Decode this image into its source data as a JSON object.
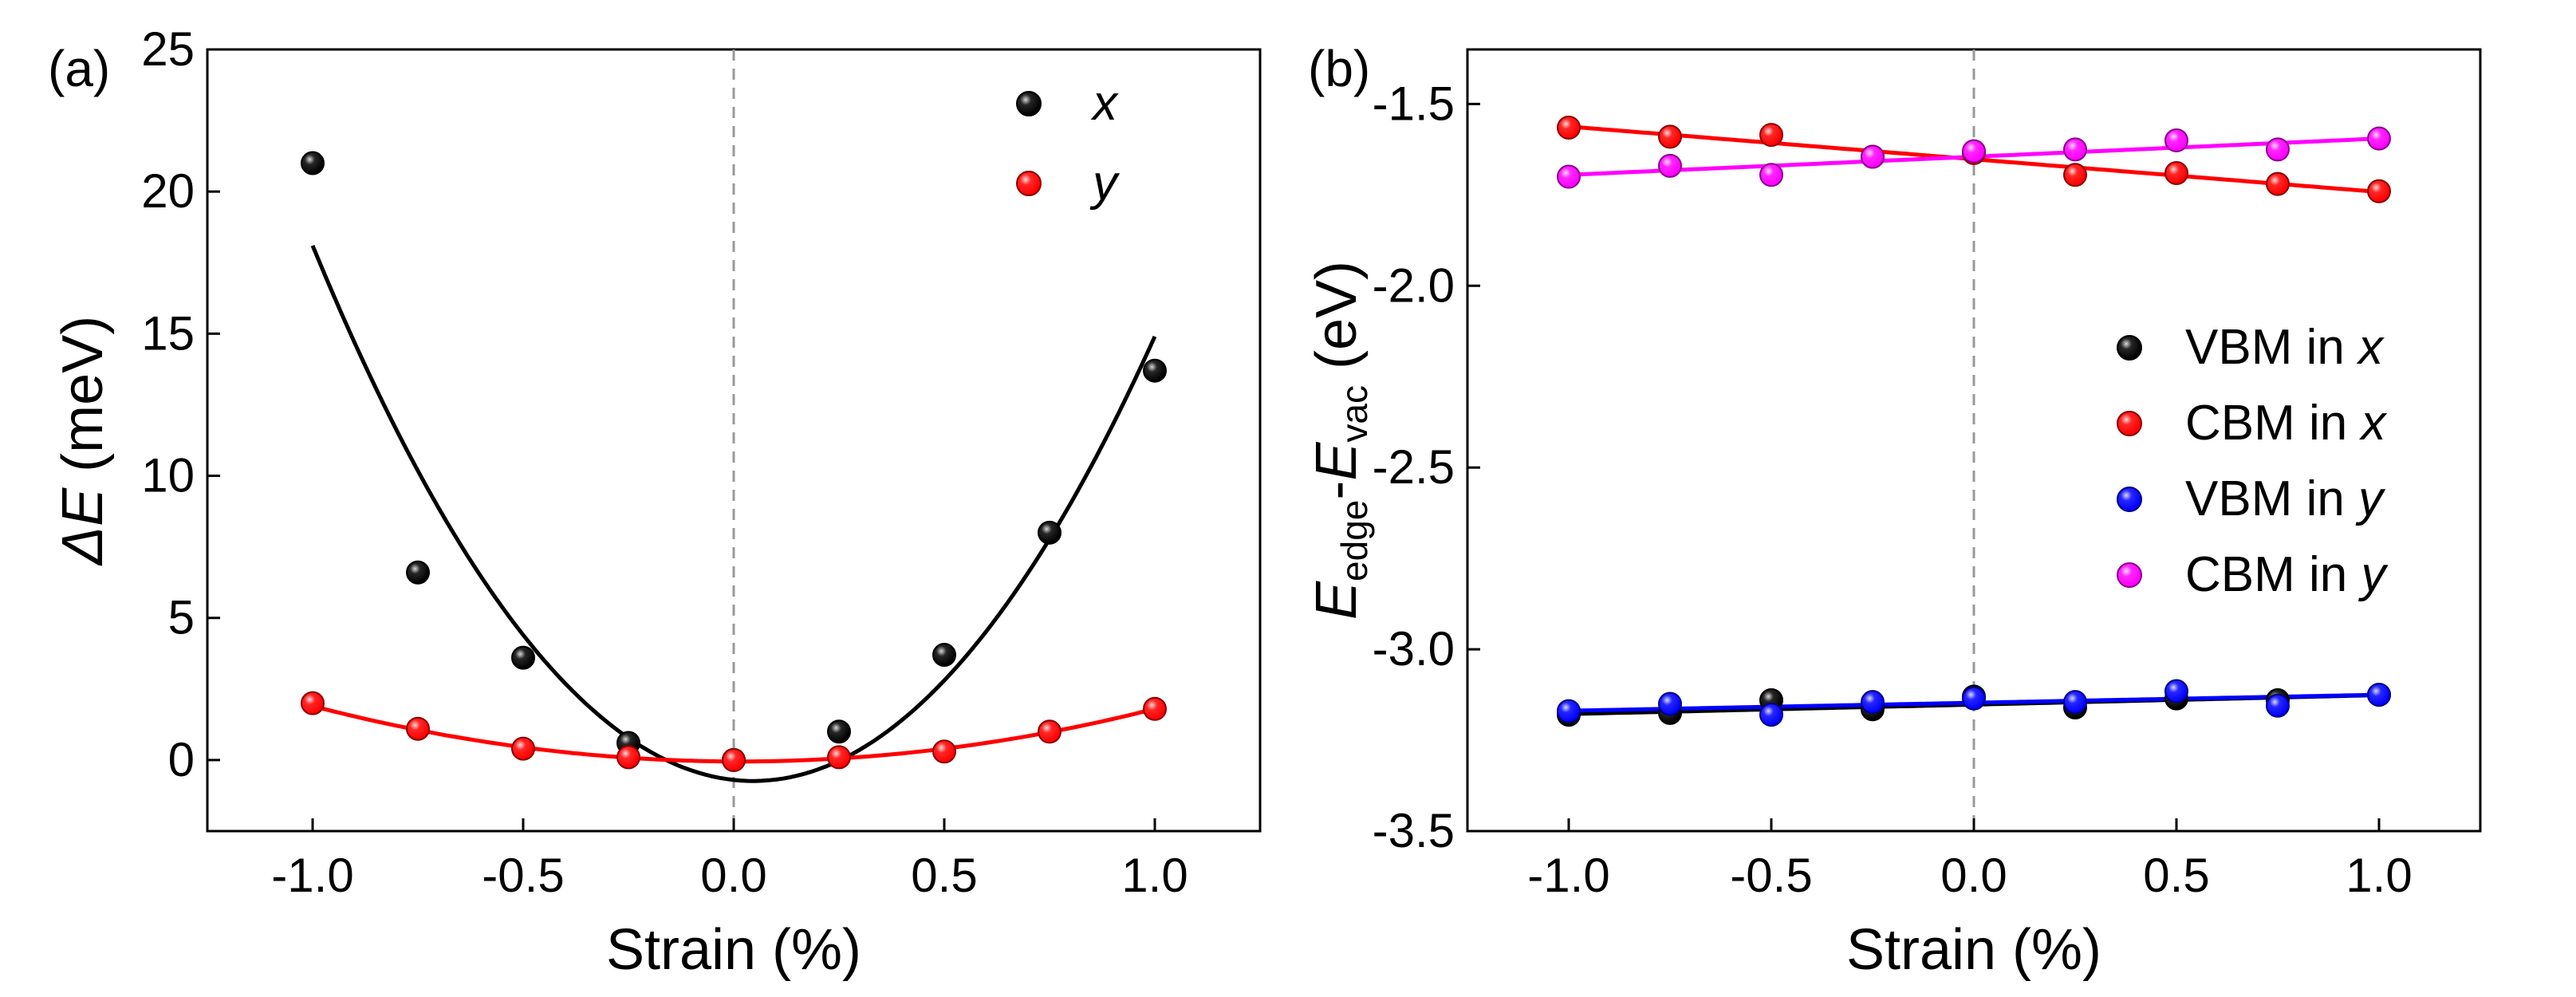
{
  "chart_data": [
    {
      "panel_label": "(a)",
      "type": "scatter",
      "xlabel": "Strain (%)",
      "ylabel": {
        "prefix": "",
        "italic": "ΔE",
        "suffix": " (meV)"
      },
      "xlim": [
        -1.25,
        1.25
      ],
      "ylim": [
        -2.5,
        25
      ],
      "xticks": [
        -1.0,
        -0.5,
        0.0,
        0.5,
        1.0
      ],
      "xtick_labels": [
        "-1.0",
        "-0.5",
        "0.0",
        "0.5",
        "1.0"
      ],
      "yticks": [
        0,
        5,
        10,
        15,
        20,
        25
      ],
      "ytick_labels": [
        "0",
        "5",
        "10",
        "15",
        "20",
        "25"
      ],
      "reference_line_x": 0.0,
      "legend_position": "top-right",
      "series": [
        {
          "name": "x",
          "color": "#000000",
          "x": [
            -1.0,
            -0.75,
            -0.5,
            -0.25,
            0.0,
            0.25,
            0.5,
            0.75,
            1.0
          ],
          "y": [
            21.0,
            6.6,
            3.6,
            0.6,
            0.0,
            1.0,
            3.7,
            8.0,
            13.7
          ],
          "fit": {
            "kind": "quadratic",
            "coefficients": [
              -0.7,
              -1.6,
              17.2
            ]
          }
        },
        {
          "name": "y",
          "color": "#ff0000",
          "x": [
            -1.0,
            -0.75,
            -0.5,
            -0.25,
            0.0,
            0.25,
            0.5,
            0.75,
            1.0
          ],
          "y": [
            2.0,
            1.1,
            0.4,
            0.1,
            0.0,
            0.1,
            0.3,
            1.0,
            1.8
          ],
          "fit": {
            "kind": "quadratic",
            "coefficients": [
              -0.05,
              -0.05,
              1.9
            ]
          }
        }
      ]
    },
    {
      "panel_label": "(b)",
      "type": "scatter",
      "xlabel": "Strain (%)",
      "ylabel": {
        "e1": "E",
        "sub1": "edge",
        "dash": "-",
        "e2": "E",
        "sub2": "vac",
        "unit": " (eV)"
      },
      "xlim": [
        -1.25,
        1.25
      ],
      "ylim": [
        -3.5,
        -1.35
      ],
      "xticks": [
        -1.0,
        -0.5,
        0.0,
        0.5,
        1.0
      ],
      "xtick_labels": [
        "-1.0",
        "-0.5",
        "0.0",
        "0.5",
        "1.0"
      ],
      "yticks": [
        -3.5,
        -3.0,
        -2.5,
        -2.0,
        -1.5
      ],
      "ytick_labels": [
        "-3.5",
        "-3.0",
        "-2.5",
        "-2.0",
        "-1.5"
      ],
      "reference_line_x": 0.0,
      "legend_position": "right",
      "series": [
        {
          "name": "VBM in x",
          "label_prefix": "VBM in ",
          "label_italic": "x",
          "color": "#000000",
          "x": [
            -1.0,
            -0.75,
            -0.5,
            -0.25,
            0.0,
            0.25,
            0.5,
            0.75,
            1.0
          ],
          "y": [
            -3.18,
            -3.175,
            -3.14,
            -3.165,
            -3.13,
            -3.16,
            -3.135,
            -3.14,
            -3.125
          ],
          "fit": {
            "kind": "linear",
            "coefficients": [
              -3.152,
              0.026
            ]
          }
        },
        {
          "name": "CBM in x",
          "label_prefix": "CBM in ",
          "label_italic": "x",
          "color": "#ff0000",
          "x": [
            -1.0,
            -0.75,
            -0.5,
            -0.25,
            0.0,
            0.25,
            0.5,
            0.75,
            1.0
          ],
          "y": [
            -1.565,
            -1.59,
            -1.585,
            -1.645,
            -1.635,
            -1.695,
            -1.69,
            -1.72,
            -1.74
          ],
          "fit": {
            "kind": "linear",
            "coefficients": [
              -1.652,
              -0.09
            ]
          }
        },
        {
          "name": "VBM in y",
          "label_prefix": "VBM in ",
          "label_italic": "y",
          "color": "#0000ff",
          "x": [
            -1.0,
            -0.75,
            -0.5,
            -0.25,
            0.0,
            0.25,
            0.5,
            0.75,
            1.0
          ],
          "y": [
            -3.17,
            -3.15,
            -3.18,
            -3.145,
            -3.135,
            -3.145,
            -3.115,
            -3.155,
            -3.125
          ],
          "fit": {
            "kind": "linear",
            "coefficients": [
              -3.147,
              0.022
            ]
          }
        },
        {
          "name": "CBM in y",
          "label_prefix": "CBM in ",
          "label_italic": "y",
          "color": "#ff00ff",
          "x": [
            -1.0,
            -0.75,
            -0.5,
            -0.25,
            0.0,
            0.25,
            0.5,
            0.75,
            1.0
          ],
          "y": [
            -1.7,
            -1.67,
            -1.695,
            -1.645,
            -1.63,
            -1.625,
            -1.6,
            -1.625,
            -1.595
          ],
          "fit": {
            "kind": "linear",
            "coefficients": [
              -1.645,
              0.05
            ]
          }
        }
      ]
    }
  ]
}
